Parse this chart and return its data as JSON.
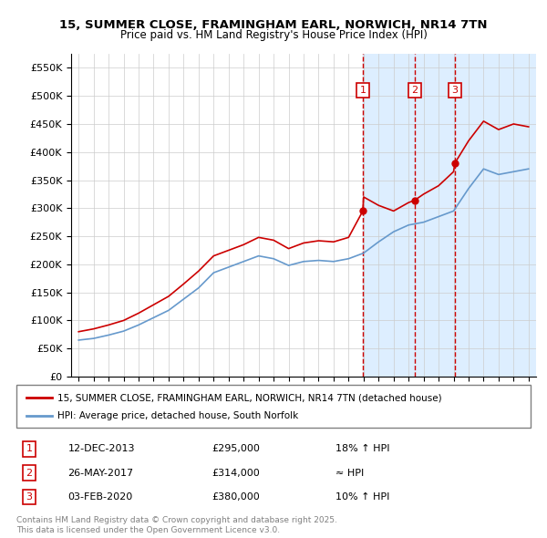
{
  "title": "15, SUMMER CLOSE, FRAMINGHAM EARL, NORWICH, NR14 7TN",
  "subtitle": "Price paid vs. HM Land Registry's House Price Index (HPI)",
  "legend_line1": "15, SUMMER CLOSE, FRAMINGHAM EARL, NORWICH, NR14 7TN (detached house)",
  "legend_line2": "HPI: Average price, detached house, South Norfolk",
  "sales": [
    {
      "num": 1,
      "date": "12-DEC-2013",
      "price": 295000,
      "note": "18% ↑ HPI",
      "x": 2013.95
    },
    {
      "num": 2,
      "date": "26-MAY-2017",
      "price": 314000,
      "note": "≈ HPI",
      "x": 2017.4
    },
    {
      "num": 3,
      "date": "03-FEB-2020",
      "price": 380000,
      "note": "10% ↑ HPI",
      "x": 2020.08
    }
  ],
  "footer": "Contains HM Land Registry data © Crown copyright and database right 2025.\nThis data is licensed under the Open Government Licence v3.0.",
  "bg_shade_start": 2013.95,
  "red_line_color": "#cc0000",
  "blue_line_color": "#6699cc",
  "shade_color": "#ddeeff",
  "grid_color": "#cccccc",
  "ylim": [
    0,
    575000
  ],
  "xlim": [
    1994.5,
    2025.5
  ],
  "hpi_years": [
    1995,
    1996,
    1997,
    1998,
    1999,
    2000,
    2001,
    2002,
    2003,
    2004,
    2005,
    2006,
    2007,
    2008,
    2009,
    2010,
    2011,
    2012,
    2013,
    2014,
    2015,
    2016,
    2017,
    2018,
    2019,
    2020,
    2021,
    2022,
    2023,
    2024,
    2025
  ],
  "hpi_values": [
    65000,
    68000,
    74000,
    81000,
    92000,
    105000,
    118000,
    138000,
    158000,
    185000,
    195000,
    205000,
    215000,
    210000,
    198000,
    205000,
    207000,
    205000,
    210000,
    220000,
    240000,
    258000,
    270000,
    275000,
    285000,
    295000,
    335000,
    370000,
    360000,
    365000,
    370000
  ],
  "red_years": [
    1995,
    1996,
    1997,
    1998,
    1999,
    2000,
    2001,
    2002,
    2003,
    2004,
    2005,
    2006,
    2007,
    2008,
    2009,
    2010,
    2011,
    2012,
    2013,
    2013.95,
    2014,
    2015,
    2016,
    2017,
    2017.4,
    2018,
    2019,
    2020,
    2020.08,
    2021,
    2022,
    2023,
    2024,
    2025
  ],
  "red_values": [
    80000,
    85000,
    92000,
    100000,
    113000,
    128000,
    143000,
    165000,
    188000,
    215000,
    225000,
    235000,
    248000,
    243000,
    228000,
    238000,
    242000,
    240000,
    248000,
    295000,
    320000,
    305000,
    295000,
    310000,
    314000,
    325000,
    340000,
    365000,
    380000,
    420000,
    455000,
    440000,
    450000,
    445000
  ]
}
